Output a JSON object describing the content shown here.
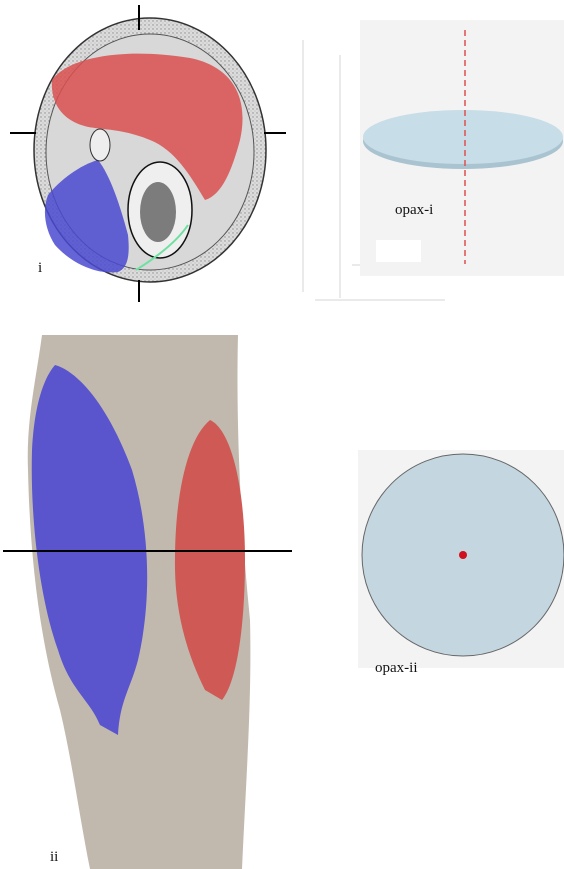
{
  "panel_i": {
    "label": "i",
    "inset_label": "opax-i"
  },
  "panel_ii": {
    "label": "ii",
    "inset_label": "opax-ii"
  }
}
